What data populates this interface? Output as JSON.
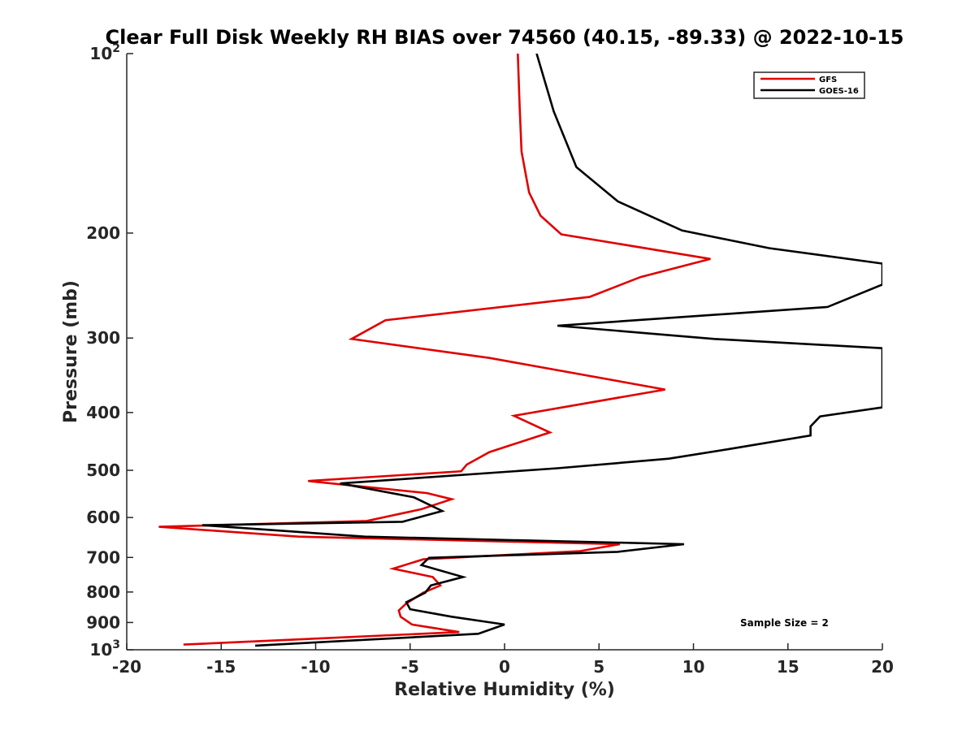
{
  "chart_data": {
    "type": "line",
    "title": "Clear Full Disk Weekly RH BIAS over 74560 (40.15, -89.33) @ 2022-10-15",
    "xlabel": "Relative Humidity (%)",
    "ylabel": "Pressure (mb)",
    "xlim": [
      -20,
      20
    ],
    "ylim": [
      100,
      1000
    ],
    "yscale": "log",
    "y_reversed": true,
    "grid": false,
    "legend_position": "top-right",
    "x_ticks": [
      "-20",
      "-15",
      "-10",
      "-5",
      "0",
      "5",
      "10",
      "15",
      "20"
    ],
    "y_ticks": [
      {
        "base": "10",
        "exp": "2"
      },
      {
        "base": "200",
        "exp": ""
      },
      {
        "base": "300",
        "exp": ""
      },
      {
        "base": "400",
        "exp": ""
      },
      {
        "base": "500",
        "exp": ""
      },
      {
        "base": "600",
        "exp": ""
      },
      {
        "base": "700",
        "exp": ""
      },
      {
        "base": "800",
        "exp": ""
      },
      {
        "base": "900",
        "exp": ""
      },
      {
        "base": "10",
        "exp": "3"
      }
    ],
    "annotation": "Sample Size = 2",
    "series": [
      {
        "name": "GFS",
        "color": "#e00000",
        "x": [
          0.7,
          0.8,
          0.9,
          1.3,
          1.9,
          3.0,
          10.9,
          7.2,
          4.5,
          -6.3,
          -8.1,
          -0.8,
          8.5,
          0.5,
          2.4,
          -0.8,
          -2.0,
          -2.3,
          -10.4,
          -4.1,
          -2.8,
          -4.4,
          -7.3,
          -18.3,
          -10.9,
          6.1,
          4.0,
          -4.3,
          -5.9,
          -3.8,
          -3.4,
          -4.3,
          -5.2,
          -5.6,
          -5.5,
          -4.9,
          -2.4,
          -17.0
        ],
        "y": [
          100,
          123,
          146,
          171,
          187,
          201,
          221,
          237,
          256,
          280,
          301,
          324,
          366,
          405,
          432,
          466,
          489,
          502,
          521,
          546,
          559,
          581,
          608,
          622,
          646,
          665,
          683,
          705,
          731,
          755,
          780,
          802,
          836,
          859,
          880,
          907,
          934,
          980
        ]
      },
      {
        "name": "GOES-16",
        "color": "#000000",
        "x": [
          1.7,
          2.6,
          3.8,
          6.0,
          9.4,
          14.0,
          20.0,
          20.0,
          17.1,
          2.8,
          11.1,
          20.0,
          20.0,
          16.7,
          16.2,
          16.2,
          11.8,
          8.7,
          2.8,
          -8.7,
          -4.8,
          -3.3,
          -5.4,
          -16.0,
          -7.4,
          9.5,
          6.0,
          -4.0,
          -4.4,
          -2.2,
          -3.9,
          -4.2,
          -5.2,
          -5.0,
          -2.8,
          0.0,
          -1.4,
          -13.2
        ],
        "y": [
          100,
          125,
          155,
          177,
          198,
          212,
          225,
          244,
          266,
          286,
          301,
          312,
          392,
          406,
          422,
          437,
          461,
          478,
          496,
          526,
          555,
          585,
          610,
          618,
          646,
          665,
          685,
          701,
          721,
          755,
          780,
          802,
          832,
          855,
          880,
          907,
          940,
          984
        ]
      }
    ]
  }
}
